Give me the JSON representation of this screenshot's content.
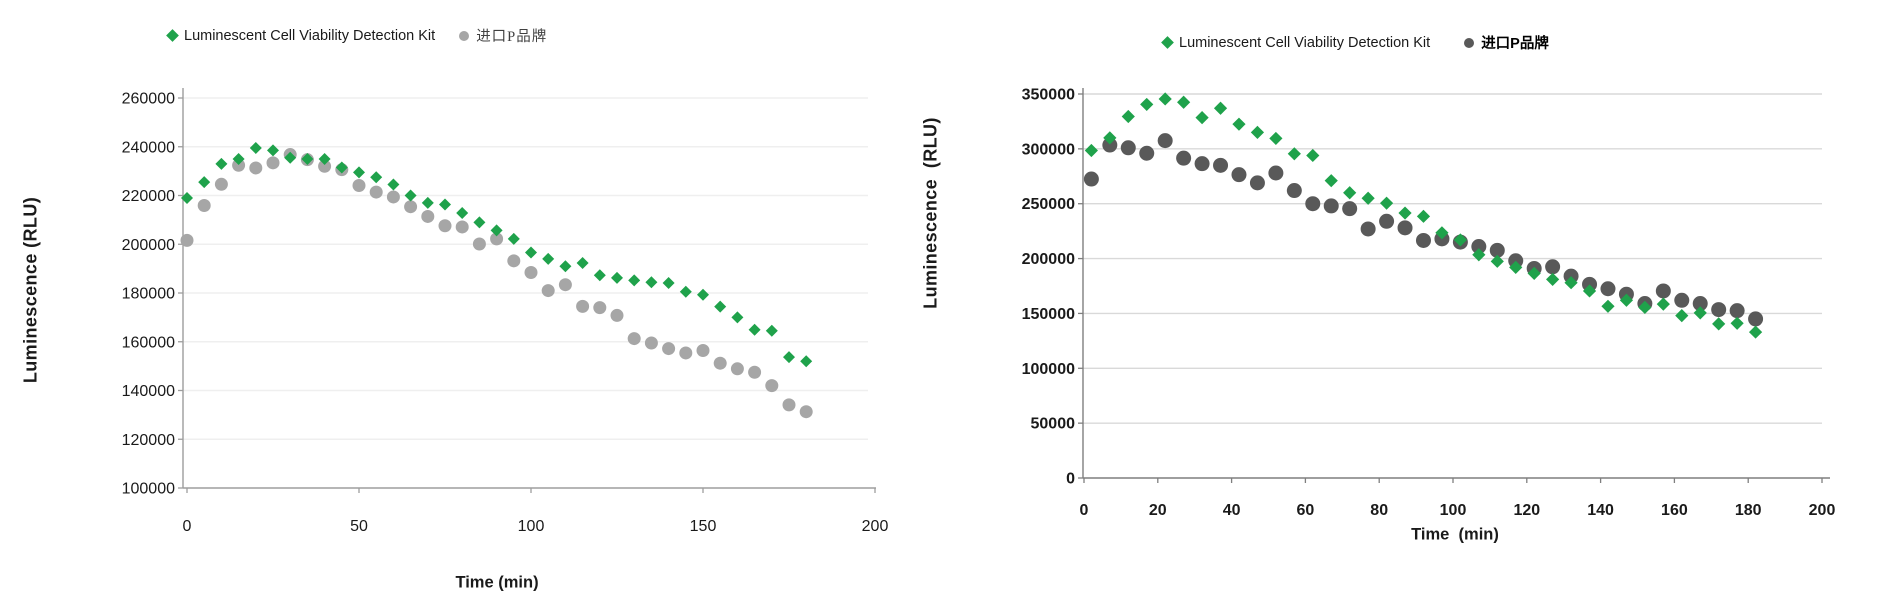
{
  "page": {
    "background": "#ffffff"
  },
  "chart_data": [
    {
      "id": "left",
      "type": "scatter",
      "title": "",
      "xlabel": "Time (min)",
      "ylabel": "Luminescence (RLU)",
      "legend_position": "top",
      "grid": true,
      "xlim": [
        0,
        200
      ],
      "ylim": [
        100000,
        260000
      ],
      "xticks": [
        0,
        50,
        100,
        150,
        200
      ],
      "yticks": [
        100000,
        120000,
        140000,
        160000,
        180000,
        200000,
        220000,
        240000,
        260000
      ],
      "grid_color": "#efefef",
      "axis_color": "#9d9d9d",
      "legend": [
        {
          "label": "Luminescent Cell Viability Detection Kit",
          "marker": "diamond",
          "color": "#1fa24b"
        },
        {
          "label": "进口P品牌",
          "marker": "circle",
          "color": "#a6a6a6"
        }
      ],
      "x": [
        0,
        5,
        10,
        15,
        20,
        25,
        30,
        35,
        40,
        45,
        50,
        55,
        60,
        65,
        70,
        75,
        80,
        85,
        90,
        95,
        100,
        105,
        110,
        115,
        120,
        125,
        130,
        135,
        140,
        145,
        150,
        155,
        160,
        165,
        170,
        175,
        180
      ],
      "series": [
        {
          "name": "Luminescent Cell Viability Detection Kit",
          "marker": "diamond",
          "color": "#1fa24b",
          "values": [
            219000,
            225500,
            233000,
            235000,
            239500,
            238500,
            235500,
            235000,
            235000,
            231500,
            229500,
            227500,
            224500,
            220000,
            217000,
            216300,
            212800,
            209000,
            205700,
            202200,
            196600,
            194000,
            191000,
            192300,
            187300,
            186200,
            185200,
            184400,
            184100,
            180500,
            179300,
            174400,
            170000,
            164900,
            164500,
            153700,
            152000
          ]
        },
        {
          "name": "进口P品牌",
          "marker": "circle",
          "color": "#a6a6a6",
          "values": [
            201600,
            215900,
            224600,
            232400,
            231300,
            233400,
            236800,
            234700,
            232000,
            230600,
            224100,
            221400,
            219400,
            215400,
            211400,
            207600,
            207100,
            200100,
            202200,
            193200,
            188400,
            181000,
            183400,
            174500,
            174000,
            170800,
            161300,
            159500,
            157200,
            155400,
            156400,
            151200,
            148900,
            147500,
            142000,
            134100,
            131300
          ]
        }
      ]
    },
    {
      "id": "right",
      "type": "scatter",
      "title": "",
      "xlabel": "Time  (min)",
      "ylabel": "Luminescence  (RLU)",
      "legend_position": "top",
      "grid": true,
      "xlim": [
        0,
        200
      ],
      "ylim": [
        0,
        350000
      ],
      "xticks": [
        0,
        20,
        40,
        60,
        80,
        100,
        120,
        140,
        160,
        180,
        200
      ],
      "yticks": [
        0,
        50000,
        100000,
        150000,
        200000,
        250000,
        300000,
        350000
      ],
      "grid_color": "#d9d9d9",
      "axis_color": "#7f7f7f",
      "legend": [
        {
          "label": "Luminescent Cell Viability Detection Kit",
          "marker": "diamond",
          "color": "#1fa24b"
        },
        {
          "label": "进口P品牌",
          "marker": "circle",
          "color": "#595959"
        }
      ],
      "x": [
        2,
        7,
        12,
        17,
        22,
        27,
        32,
        37,
        42,
        47,
        52,
        57,
        62,
        67,
        72,
        77,
        82,
        87,
        92,
        97,
        102,
        107,
        112,
        117,
        122,
        127,
        132,
        137,
        142,
        147,
        152,
        157,
        162,
        167,
        172,
        177,
        182
      ],
      "series": [
        {
          "name": "Luminescent Cell Viability Detection Kit",
          "marker": "diamond",
          "color": "#1fa24b",
          "values": [
            298500,
            310000,
            329500,
            340500,
            345500,
            342500,
            328500,
            337000,
            322500,
            315000,
            309500,
            295500,
            294000,
            271000,
            260000,
            255000,
            250500,
            241500,
            238500,
            223500,
            217000,
            203500,
            197500,
            192000,
            186500,
            181000,
            178000,
            170500,
            156500,
            162000,
            155500,
            158500,
            148000,
            150500,
            140500,
            141000,
            133000
          ]
        },
        {
          "name": "进口P品牌",
          "marker": "circle",
          "color": "#595959",
          "values": [
            272500,
            303500,
            301000,
            296000,
            307500,
            291500,
            286500,
            285000,
            276500,
            269000,
            278000,
            262000,
            250000,
            248000,
            245500,
            227000,
            234000,
            228000,
            216500,
            218000,
            215000,
            211000,
            207500,
            198000,
            191000,
            192500,
            184000,
            176500,
            172500,
            167500,
            159000,
            170500,
            162000,
            159000,
            153500,
            152500,
            145000
          ]
        }
      ]
    }
  ]
}
